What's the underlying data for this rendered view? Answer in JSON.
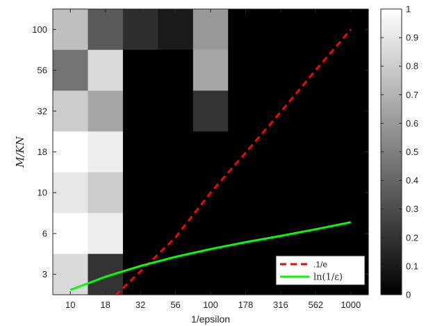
{
  "chart_data": {
    "type": "heatmap",
    "xlabel": "1/epsilon",
    "ylabel": "M/KN",
    "x_categories": [
      "10",
      "18",
      "32",
      "56",
      "100",
      "178",
      "316",
      "562",
      "1000"
    ],
    "y_categories": [
      "100",
      "56",
      "32",
      "18",
      "10",
      "6",
      "3"
    ],
    "cells": [
      [
        0.75,
        0.35,
        0.18,
        0.1,
        0.6,
        0,
        0,
        0,
        0
      ],
      [
        0.45,
        0.85,
        0,
        0,
        0.65,
        0,
        0,
        0,
        0
      ],
      [
        0.8,
        0.65,
        0,
        0,
        0.2,
        0,
        0,
        0,
        0
      ],
      [
        1.0,
        0.93,
        0,
        0,
        0,
        0,
        0,
        0,
        0
      ],
      [
        0.9,
        0.8,
        0,
        0,
        0,
        0,
        0,
        0,
        0
      ],
      [
        1.0,
        0.93,
        0,
        0,
        0,
        0,
        0,
        0,
        0
      ],
      [
        0.85,
        0.2,
        0,
        0,
        0,
        0,
        0,
        0,
        0
      ]
    ],
    "colorbar": {
      "min": 0,
      "max": 1,
      "ticks": [
        "0",
        "0.1",
        "0.2",
        "0.3",
        "0.4",
        "0.5",
        "0.6",
        "0.7",
        "0.8",
        "0.9",
        "1"
      ]
    },
    "series": [
      {
        "name": ".1/e",
        "style": "dashed",
        "color": "#ff0000",
        "x": [
          10,
          18,
          32,
          56,
          100,
          178,
          316,
          562,
          1000
        ],
        "y": [
          1,
          1.8,
          3.2,
          5.6,
          10,
          17.8,
          31.6,
          56.2,
          100
        ]
      },
      {
        "name": "ln(1/ε)",
        "style": "solid",
        "color": "#00ff00",
        "x": [
          10,
          18,
          32,
          56,
          100,
          178,
          316,
          562,
          1000
        ],
        "y": [
          2.3,
          2.89,
          3.47,
          4.03,
          4.61,
          5.18,
          5.76,
          6.33,
          6.91
        ]
      }
    ],
    "legend": {
      "position": "bottom-right",
      "entries": [
        {
          "label": ".1/e",
          "color": "#ff0000",
          "style": "dashed"
        },
        {
          "label": "ln(1/ε)",
          "color": "#00ff00",
          "style": "solid"
        }
      ]
    }
  }
}
